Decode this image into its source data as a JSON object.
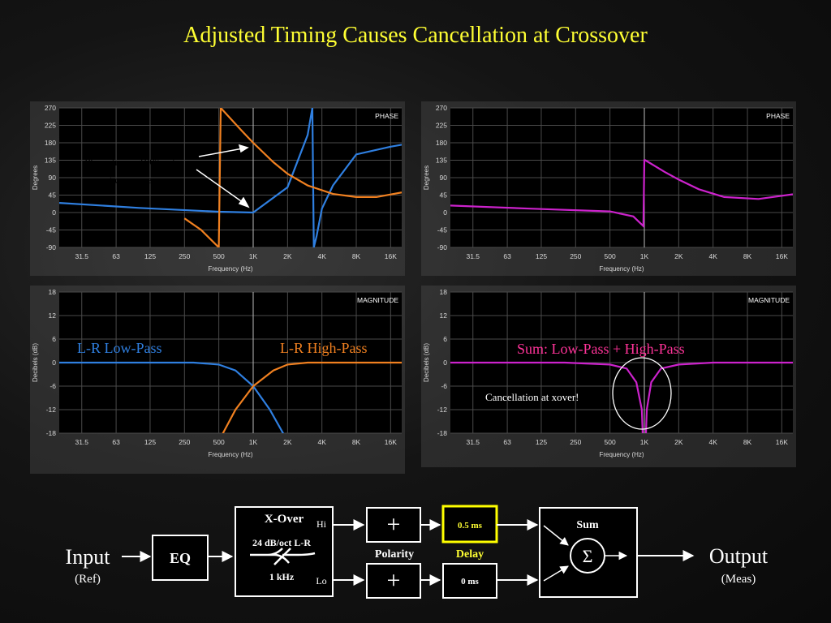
{
  "title": "Adjusted Timing Causes Cancellation at Crossover",
  "freq_ticks": [
    "31.5",
    "63",
    "125",
    "250",
    "500",
    "1K",
    "2K",
    "4K",
    "8K",
    "16K"
  ],
  "phase_ticks": [
    "270",
    "225",
    "180",
    "135",
    "90",
    "45",
    "0",
    "-45",
    "-90"
  ],
  "mag_ticks": [
    "18",
    "12",
    "6",
    "0",
    "-6",
    "-12",
    "-18"
  ],
  "xlabel": "Frequency (Hz)",
  "phase_ylabel": "Degrees",
  "mag_ylabel": "Decibels (dB)",
  "phase_tag": "PHASE",
  "mag_tag": "MAGNITUDE",
  "annotations": {
    "phase_note_line1": "Phase traces 180° out",
    "phase_note_line2": "at crossover",
    "lowpass_label": "L-R Low-Pass",
    "highpass_label": "L-R High-Pass",
    "sum_label": "Sum: Low-Pass + High-Pass",
    "cancel_note": "Cancellation at xover!"
  },
  "colors": {
    "title": "#ffff33",
    "lowpass": "#2f7fe0",
    "highpass": "#f08020",
    "sum": "#cc22cc",
    "sum_label": "#ff3399",
    "delay_highlight": "#ffff00"
  },
  "diagram": {
    "input": "Input",
    "input_sub": "(Ref)",
    "eq": "EQ",
    "xover": "X-Over",
    "xover_slope": "24 dB/oct L-R",
    "xover_freq": "1 kHz",
    "hi": "Hi",
    "lo": "Lo",
    "plus_hi": "+",
    "plus_lo": "+",
    "polarity": "Polarity",
    "delay_hi": "0.5  ms",
    "delay_lo": "0  ms",
    "delay": "Delay",
    "sum": "Sum",
    "sigma": "Σ",
    "output": "Output",
    "output_sub": "(Meas)"
  },
  "chart_data": [
    {
      "type": "line",
      "title": "PHASE",
      "xlabel": "Frequency (Hz)",
      "ylabel": "Degrees",
      "xscale": "log",
      "ylim": [
        -90,
        270
      ],
      "series": [
        {
          "name": "L-R Low-Pass",
          "x": [
            20,
            100,
            500,
            1000,
            2000,
            3000,
            3300,
            3400,
            3600,
            4000,
            5000,
            8000,
            16000,
            20000
          ],
          "y": [
            25,
            12,
            2,
            0,
            65,
            200,
            270,
            -90,
            -60,
            10,
            70,
            150,
            170,
            175
          ]
        },
        {
          "name": "L-R High-Pass",
          "x": [
            250,
            350,
            500,
            520,
            600,
            800,
            1000,
            1500,
            2000,
            3000,
            5000,
            8000,
            12000,
            20000
          ],
          "y": [
            -15,
            -45,
            -90,
            270,
            250,
            210,
            180,
            130,
            100,
            70,
            48,
            40,
            40,
            52
          ]
        }
      ]
    },
    {
      "type": "line",
      "title": "PHASE",
      "xlabel": "Frequency (Hz)",
      "ylabel": "Degrees",
      "xscale": "log",
      "ylim": [
        -90,
        270
      ],
      "series": [
        {
          "name": "Sum: Low-Pass + High-Pass",
          "x": [
            20,
            100,
            500,
            800,
            980,
            1000,
            1020,
            1500,
            2000,
            3000,
            5000,
            10000,
            20000
          ],
          "y": [
            18,
            10,
            3,
            -10,
            -35,
            135,
            135,
            105,
            85,
            60,
            40,
            35,
            47
          ]
        }
      ]
    },
    {
      "type": "line",
      "title": "MAGNITUDE",
      "xlabel": "Frequency (Hz)",
      "ylabel": "Decibels (dB)",
      "xscale": "log",
      "ylim": [
        -18,
        18
      ],
      "series": [
        {
          "name": "L-R Low-Pass",
          "x": [
            20,
            100,
            300,
            500,
            700,
            1000,
            1400,
            2000
          ],
          "y": [
            0,
            0,
            0,
            -0.5,
            -2,
            -6,
            -12,
            -20
          ]
        },
        {
          "name": "L-R High-Pass",
          "x": [
            500,
            700,
            1000,
            1500,
            2000,
            3000,
            5000,
            20000
          ],
          "y": [
            -20,
            -12,
            -6,
            -2,
            -0.5,
            0,
            0,
            0
          ]
        }
      ]
    },
    {
      "type": "line",
      "title": "MAGNITUDE",
      "xlabel": "Frequency (Hz)",
      "ylabel": "Decibels (dB)",
      "xscale": "log",
      "ylim": [
        -18,
        18
      ],
      "series": [
        {
          "name": "Sum: Low-Pass + High-Pass",
          "x": [
            20,
            200,
            500,
            700,
            850,
            950,
            1000,
            1050,
            1150,
            1400,
            2000,
            4000,
            20000
          ],
          "y": [
            0,
            0,
            -0.5,
            -1.5,
            -5,
            -12,
            -30,
            -12,
            -5,
            -1.5,
            -0.5,
            0,
            0
          ]
        }
      ]
    }
  ]
}
